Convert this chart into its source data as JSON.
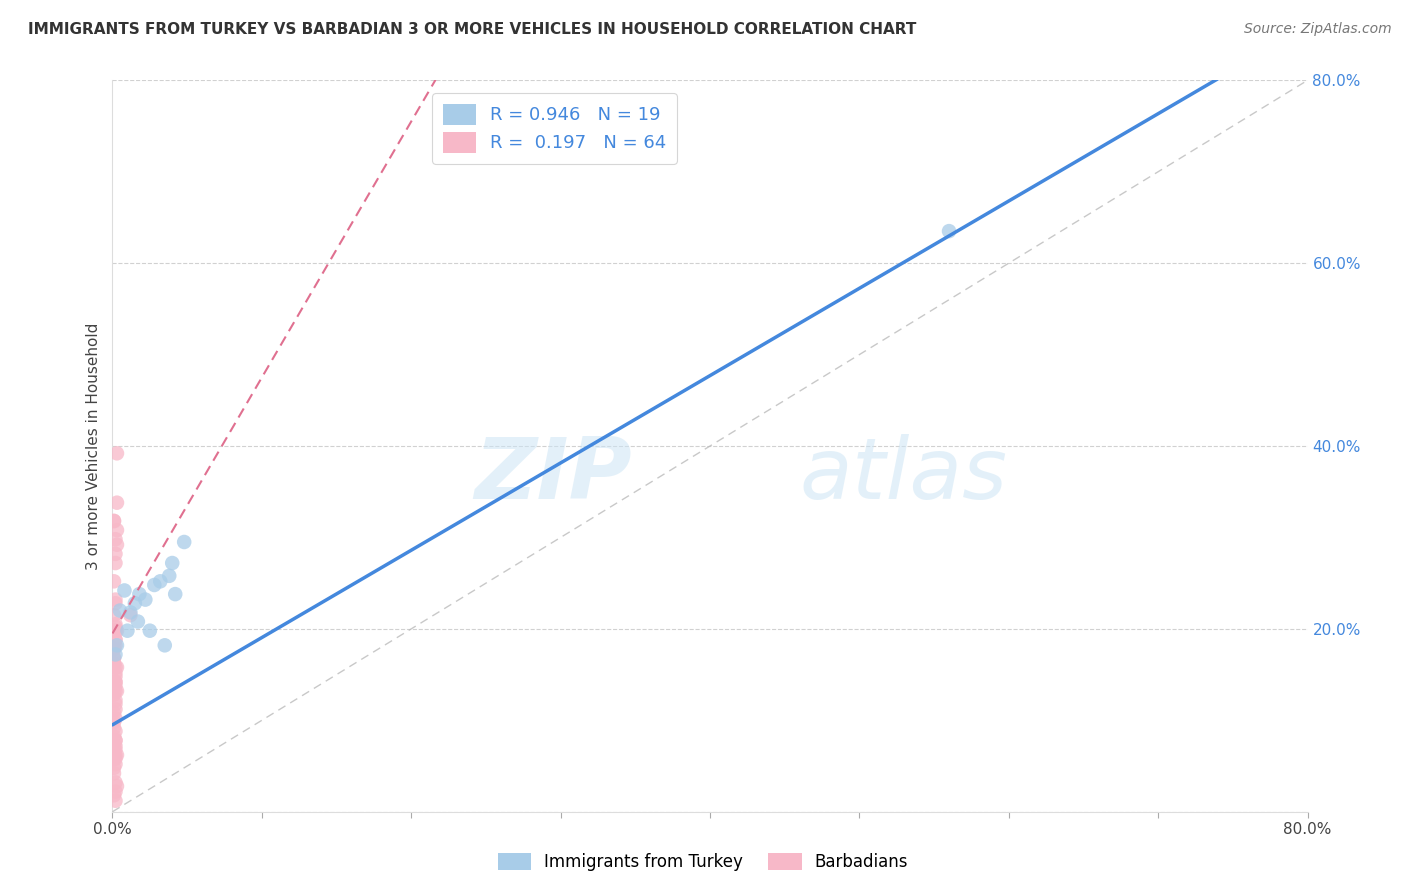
{
  "title": "IMMIGRANTS FROM TURKEY VS BARBADIAN 3 OR MORE VEHICLES IN HOUSEHOLD CORRELATION CHART",
  "source": "Source: ZipAtlas.com",
  "ylabel": "3 or more Vehicles in Household",
  "xlim": [
    0,
    0.8
  ],
  "ylim": [
    0,
    0.8
  ],
  "xticks": [
    0.0,
    0.1,
    0.2,
    0.3,
    0.4,
    0.5,
    0.6,
    0.7,
    0.8
  ],
  "xticklabels": [
    "0.0%",
    "",
    "",
    "",
    "",
    "",
    "",
    "",
    "80.0%"
  ],
  "yticks": [
    0.0,
    0.2,
    0.4,
    0.6,
    0.8
  ],
  "yticklabels": [
    "",
    "20.0%",
    "40.0%",
    "60.0%",
    "80.0%"
  ],
  "watermark_zip": "ZIP",
  "watermark_atlas": "atlas",
  "blue_color": "#a8cce8",
  "pink_color": "#f7b8c8",
  "blue_line_color": "#4488dd",
  "pink_line_color": "#e07090",
  "grid_color": "#cccccc",
  "diag_line_color": "#bbbbbb",
  "blue_scatter_x": [
    0.005,
    0.008,
    0.01,
    0.012,
    0.015,
    0.003,
    0.018,
    0.022,
    0.017,
    0.028,
    0.032,
    0.025,
    0.038,
    0.035,
    0.04,
    0.048,
    0.042,
    0.56,
    0.002
  ],
  "blue_scatter_y": [
    0.22,
    0.242,
    0.198,
    0.218,
    0.228,
    0.182,
    0.238,
    0.232,
    0.208,
    0.248,
    0.252,
    0.198,
    0.258,
    0.182,
    0.272,
    0.295,
    0.238,
    0.635,
    0.172
  ],
  "pink_scatter_x": [
    0.001,
    0.002,
    0.001,
    0.002,
    0.003,
    0.003,
    0.001,
    0.002,
    0.002,
    0.001,
    0.003,
    0.001,
    0.002,
    0.002,
    0.002,
    0.003,
    0.002,
    0.001,
    0.001,
    0.002,
    0.002,
    0.002,
    0.001,
    0.001,
    0.003,
    0.002,
    0.002,
    0.001,
    0.002,
    0.002,
    0.002,
    0.001,
    0.001,
    0.003,
    0.002,
    0.002,
    0.001,
    0.002,
    0.002,
    0.002,
    0.001,
    0.003,
    0.002,
    0.001,
    0.002,
    0.002,
    0.001,
    0.002,
    0.001,
    0.002,
    0.003,
    0.002,
    0.001,
    0.001,
    0.002,
    0.002,
    0.002,
    0.001,
    0.003,
    0.002,
    0.002,
    0.001,
    0.002,
    0.012
  ],
  "pink_scatter_y": [
    0.215,
    0.228,
    0.198,
    0.205,
    0.308,
    0.292,
    0.318,
    0.282,
    0.232,
    0.318,
    0.338,
    0.252,
    0.298,
    0.272,
    0.188,
    0.198,
    0.202,
    0.178,
    0.168,
    0.188,
    0.182,
    0.198,
    0.162,
    0.168,
    0.158,
    0.142,
    0.132,
    0.178,
    0.148,
    0.152,
    0.158,
    0.162,
    0.128,
    0.132,
    0.142,
    0.138,
    0.108,
    0.112,
    0.118,
    0.122,
    0.098,
    0.392,
    0.088,
    0.092,
    0.102,
    0.062,
    0.068,
    0.072,
    0.058,
    0.078,
    0.062,
    0.052,
    0.048,
    0.042,
    0.058,
    0.068,
    0.078,
    0.082,
    0.028,
    0.022,
    0.032,
    0.018,
    0.012,
    0.215
  ],
  "blue_line_intercept": 0.095,
  "blue_line_slope": 0.955,
  "pink_line_intercept": 0.195,
  "pink_line_slope": 2.8,
  "pink_line_xmax": 0.78
}
